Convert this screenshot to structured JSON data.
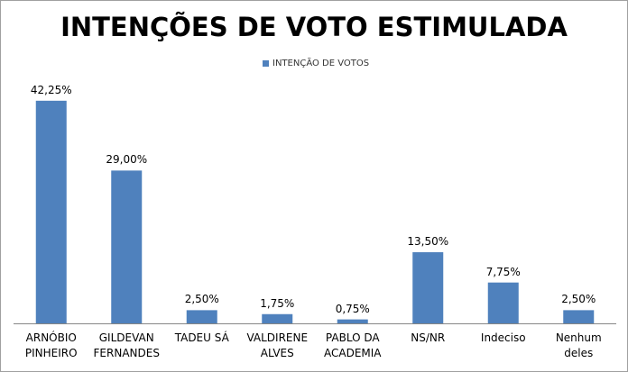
{
  "chart_data": {
    "type": "bar",
    "title": "INTENÇÕES DE VOTO ESTIMULADA",
    "legend": "top",
    "series": [
      {
        "name": "INTENÇÃO DE VOTOS",
        "color": "#4f81bd",
        "values": [
          42.25,
          29.0,
          2.5,
          1.75,
          0.75,
          13.5,
          7.75,
          2.5
        ],
        "value_labels": [
          "42,25%",
          "29,00%",
          "2,50%",
          "1,75%",
          "0,75%",
          "13,50%",
          "7,75%",
          "2,50%"
        ]
      }
    ],
    "categories": [
      "ARNÓBIO\nPINHEIRO",
      "GILDEVAN\nFERNANDES",
      "TADEU SÁ",
      "VALDIRENE\nALVES",
      "PABLO DA\nACADEMIA",
      "NS/NR",
      "Indeciso",
      "Nenhum\ndeles"
    ]
  }
}
